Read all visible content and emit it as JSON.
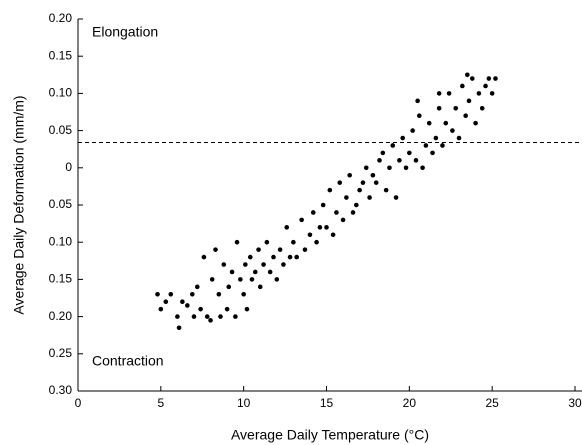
{
  "chart_data": {
    "type": "scatter",
    "x_label": "Average Daily Temperature (°C)",
    "y_label": "Average Daily Deformation (mm/m)",
    "annotations": [
      "Elongation",
      "Contraction"
    ],
    "xlim": [
      0,
      30
    ],
    "xticks": [
      0,
      5,
      10,
      15,
      20,
      25,
      30
    ],
    "ylim": [
      -0.3,
      0.2
    ],
    "yticks": [
      {
        "value": 0.2,
        "label": "0.20"
      },
      {
        "value": 0.15,
        "label": "0.15"
      },
      {
        "value": 0.1,
        "label": "0.10"
      },
      {
        "value": 0.05,
        "label": "0.05"
      },
      0,
      {
        "value": -0.05,
        "label": "0.05"
      },
      {
        "value": -0.1,
        "label": "0.10"
      },
      {
        "value": -0.15,
        "label": "0.15"
      },
      {
        "value": -0.2,
        "label": "0.20"
      },
      {
        "value": -0.25,
        "label": "0.25"
      },
      {
        "value": -0.3,
        "label": "0.30"
      }
    ],
    "reference_line": 0.034,
    "series": [
      {
        "color": "#000000",
        "x": [
          4.8,
          5.0,
          5.3,
          5.6,
          6.0,
          6.1,
          6.3,
          6.6,
          6.9,
          7.0,
          7.2,
          7.4,
          7.6,
          7.8,
          8.0,
          8.1,
          8.3,
          8.5,
          8.6,
          8.8,
          9.0,
          9.1,
          9.3,
          9.5,
          9.6,
          9.8,
          10.0,
          10.1,
          10.2,
          10.4,
          10.5,
          10.7,
          10.9,
          11.0,
          11.2,
          11.4,
          11.6,
          11.8,
          12.0,
          12.2,
          12.4,
          12.6,
          12.8,
          13.0,
          13.2,
          13.5,
          13.7,
          14.0,
          14.2,
          14.4,
          14.6,
          14.8,
          15.0,
          15.2,
          15.4,
          15.6,
          15.8,
          16.0,
          16.2,
          16.4,
          16.6,
          16.8,
          17.0,
          17.2,
          17.4,
          17.6,
          17.8,
          18.0,
          18.2,
          18.4,
          18.6,
          18.8,
          19.0,
          19.2,
          19.4,
          19.6,
          19.8,
          20.0,
          20.2,
          20.4,
          20.6,
          20.8,
          21.0,
          21.2,
          21.4,
          21.6,
          21.8,
          22.0,
          22.2,
          22.4,
          22.6,
          22.8,
          23.0,
          23.2,
          23.4,
          23.6,
          23.8,
          24.0,
          24.2,
          24.4,
          24.6,
          24.8,
          25.0,
          25.2,
          21.8,
          20.5,
          23.5
        ],
        "values": [
          -0.17,
          -0.19,
          -0.18,
          -0.17,
          -0.2,
          -0.215,
          -0.18,
          -0.185,
          -0.17,
          -0.2,
          -0.16,
          -0.19,
          -0.12,
          -0.2,
          -0.205,
          -0.15,
          -0.11,
          -0.17,
          -0.2,
          -0.13,
          -0.19,
          -0.16,
          -0.14,
          -0.2,
          -0.1,
          -0.15,
          -0.17,
          -0.13,
          -0.19,
          -0.12,
          -0.15,
          -0.14,
          -0.11,
          -0.16,
          -0.13,
          -0.1,
          -0.14,
          -0.12,
          -0.15,
          -0.11,
          -0.13,
          -0.08,
          -0.12,
          -0.1,
          -0.12,
          -0.07,
          -0.11,
          -0.09,
          -0.06,
          -0.1,
          -0.08,
          -0.05,
          -0.08,
          -0.03,
          -0.09,
          -0.06,
          -0.02,
          -0.07,
          -0.04,
          -0.01,
          -0.06,
          -0.05,
          -0.03,
          -0.02,
          0,
          -0.04,
          -0.01,
          -0.02,
          0.01,
          0.02,
          -0.03,
          0,
          0.03,
          -0.04,
          0.01,
          0.04,
          0,
          0.02,
          0.05,
          0.01,
          0.07,
          0,
          0.03,
          0.06,
          0.02,
          0.04,
          0.08,
          0.03,
          0.06,
          0.1,
          0.05,
          0.08,
          0.04,
          0.11,
          0.07,
          0.09,
          0.12,
          0.06,
          0.1,
          0.08,
          0.11,
          0.12,
          0.1,
          0.12,
          0.1,
          0.09,
          0.125
        ]
      }
    ]
  }
}
